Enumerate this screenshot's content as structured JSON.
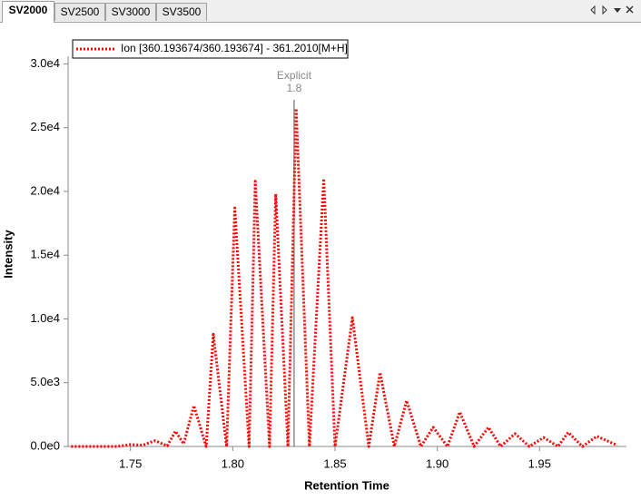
{
  "tabs": [
    "SV2000",
    "SV2500",
    "SV3000",
    "SV3500"
  ],
  "chart_data": {
    "type": "line",
    "x_label": "Retention Time",
    "y_label": "Intensity",
    "x": [
      1.721,
      1.729,
      1.7365,
      1.7435,
      1.75,
      1.756,
      1.762,
      1.768,
      1.772,
      1.776,
      1.781,
      1.787,
      1.7905,
      1.797,
      1.801,
      1.808,
      1.811,
      1.818,
      1.821,
      1.827,
      1.831,
      1.8375,
      1.8445,
      1.85,
      1.8585,
      1.8665,
      1.872,
      1.879,
      1.885,
      1.892,
      1.898,
      1.905,
      1.911,
      1.918,
      1.925,
      1.931,
      1.938,
      1.945,
      1.952,
      1.959,
      1.964,
      1.971,
      1.978,
      1.988
    ],
    "series": [
      {
        "name": "Ion [360.193674/360.193674] - 361.2010[M+H]",
        "color": "#ff0000",
        "values": [
          0,
          0,
          0,
          0,
          150,
          100,
          450,
          50,
          1200,
          200,
          3200,
          0,
          8800,
          0,
          18700,
          0,
          20800,
          0,
          19800,
          0,
          26500,
          0,
          21000,
          0,
          10100,
          0,
          5800,
          0,
          3600,
          0,
          1500,
          0,
          2700,
          0,
          1500,
          0,
          1000,
          0,
          700,
          0,
          1100,
          0,
          800,
          100
        ]
      }
    ],
    "xlim": [
      1.7195,
      1.9925
    ],
    "xticks": [
      1.75,
      {
        "value": 1.8,
        "label": "1.80"
      },
      1.85,
      {
        "value": 1.9,
        "label": "1.90"
      },
      1.95
    ],
    "ylim": [
      0,
      30600
    ],
    "yticks": [
      {
        "value": 0,
        "label": "0.0e0"
      },
      {
        "value": 5000,
        "label": "5.0e3"
      },
      {
        "value": 10000,
        "label": "1.0e4"
      },
      {
        "value": 15000,
        "label": "1.5e4"
      },
      {
        "value": 20000,
        "label": "2.0e4"
      },
      {
        "value": 25000,
        "label": "2.5e4"
      },
      {
        "value": 30000,
        "label": "3.0e4"
      }
    ],
    "annotations": [
      {
        "text": "Explicit",
        "x": 1.83,
        "x_label": "1.8"
      }
    ]
  }
}
